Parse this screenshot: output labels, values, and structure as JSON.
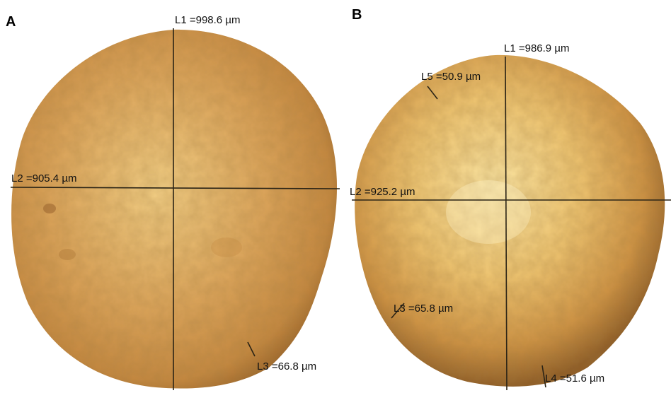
{
  "panels": [
    {
      "letter": "A",
      "measurements": {
        "L1": "L1 =998.6 µm",
        "L2": "L2 =905.4 µm",
        "L3": "L3 =66.8 µm"
      }
    },
    {
      "letter": "B",
      "measurements": {
        "L1": "L1 =986.9 µm",
        "L2": "L2 =925.2 µm",
        "L3": "L3 =65.8 µm",
        "L4": "L4 =51.6 µm",
        "L5": "L5 =50.9 µm"
      }
    }
  ],
  "colors": {
    "particle_core": "#f8d98c",
    "particle_mid": "#d9a050",
    "particle_edge": "#a8702e",
    "line": "#2b2416"
  }
}
